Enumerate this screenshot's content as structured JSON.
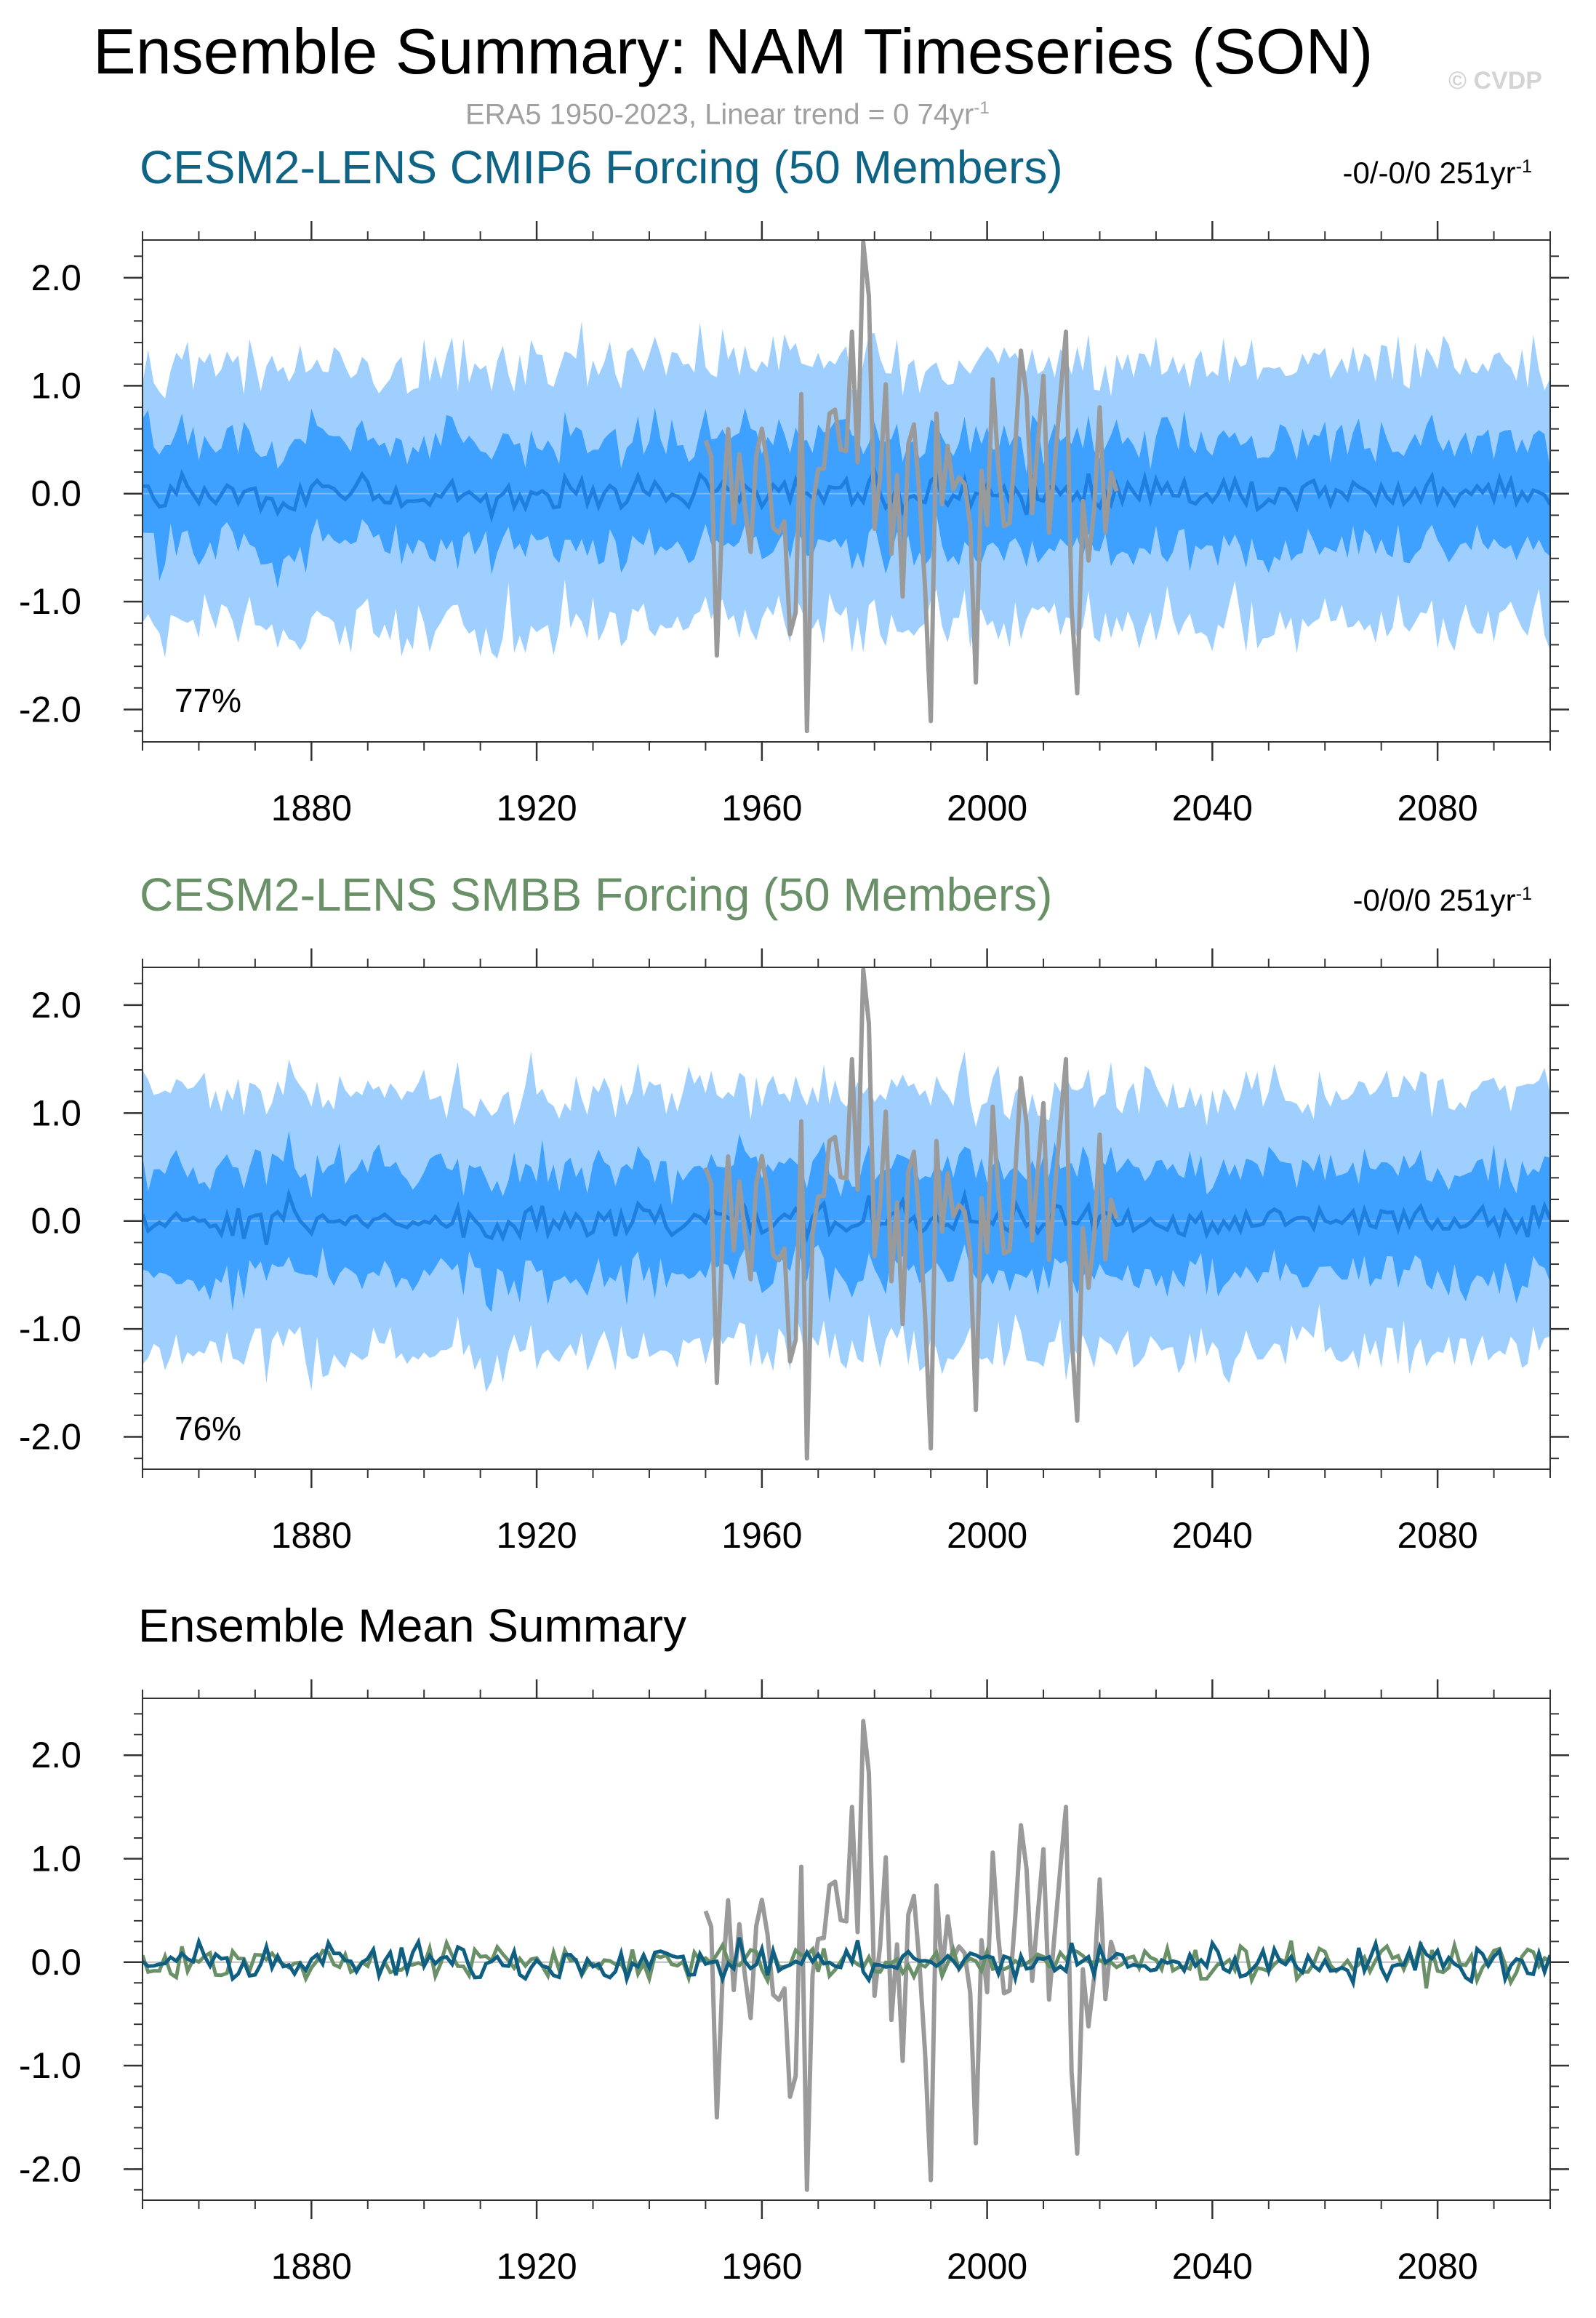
{
  "title": "Ensemble Summary: NAM Timeseries (SON)",
  "subtitle": "ERA5 1950-2023, Linear trend = 0 74yr",
  "subtitle_sup": "-1",
  "copyright": "© CVDP",
  "colors": {
    "cmip6_title": "#0f6486",
    "smbb_title": "#6a9068",
    "band_outer": "#9fcfff",
    "band_inner": "#3ea0ff",
    "mean_line": "#1f7fe0",
    "obs_line": "#9a9a9a",
    "cmip6_mean": "#0f5f82",
    "smbb_mean": "#6a9068"
  },
  "panels": {
    "cmip6": {
      "title": "CESM2-LENS CMIP6 Forcing (50 Members)",
      "trend": "-0/-0/0 251yr",
      "trend_sup": "-1",
      "pct": "77%"
    },
    "smbb": {
      "title": "CESM2-LENS SMBB Forcing (50 Members)",
      "trend": "-0/0/0 251yr",
      "trend_sup": "-1",
      "pct": "76%"
    },
    "mean": {
      "title": "Ensemble Mean Summary"
    }
  },
  "chart_data": [
    {
      "type": "area",
      "name": "cmip6",
      "title": "CESM2-LENS CMIP6 Forcing (50 Members)",
      "xlim": [
        1850,
        2100
      ],
      "ylim": [
        -2.3,
        2.35
      ],
      "xticks": [
        1880,
        1920,
        1960,
        2000,
        2040,
        2080
      ],
      "xtick_labels": [
        "1880",
        "1920",
        "1960",
        "2000",
        "2040",
        "2080"
      ],
      "yticks": [
        2.0,
        1.0,
        0.0,
        -1.0,
        -2.0
      ],
      "ytick_labels": [
        "2.0",
        "1.0",
        "0.0",
        "-1.0",
        "-2.0"
      ],
      "series": [
        {
          "name": "ensemble 10-90% range",
          "x_range": [
            1850,
            2100
          ],
          "lower_approx": -1.2,
          "upper_approx": 1.2
        },
        {
          "name": "ensemble 25-75% range",
          "x_range": [
            1850,
            2100
          ],
          "lower_approx": -0.55,
          "upper_approx": 0.55
        },
        {
          "name": "ensemble mean",
          "x_range": [
            1850,
            2100
          ],
          "value_approx": 0.0
        },
        {
          "name": "ERA5",
          "x": [
            1950,
            2023
          ]
        }
      ]
    },
    {
      "type": "area",
      "name": "smbb",
      "title": "CESM2-LENS SMBB Forcing (50 Members)",
      "xlim": [
        1850,
        2100
      ],
      "ylim": [
        -2.3,
        2.35
      ],
      "xticks": [
        1880,
        1920,
        1960,
        2000,
        2040,
        2080
      ],
      "xtick_labels": [
        "1880",
        "1920",
        "1960",
        "2000",
        "2040",
        "2080"
      ],
      "yticks": [
        2.0,
        1.0,
        0.0,
        -1.0,
        -2.0
      ],
      "ytick_labels": [
        "2.0",
        "1.0",
        "0.0",
        "-1.0",
        "-2.0"
      ],
      "series": [
        {
          "name": "ensemble 10-90% range",
          "x_range": [
            1850,
            2100
          ],
          "lower_approx": -1.2,
          "upper_approx": 1.2
        },
        {
          "name": "ensemble 25-75% range",
          "x_range": [
            1850,
            2100
          ],
          "lower_approx": -0.55,
          "upper_approx": 0.55
        },
        {
          "name": "ensemble mean",
          "x_range": [
            1850,
            2100
          ],
          "value_approx": 0.0
        },
        {
          "name": "ERA5",
          "x": [
            1950,
            2023
          ]
        }
      ]
    },
    {
      "type": "line",
      "name": "mean",
      "title": "Ensemble Mean Summary",
      "xlim": [
        1850,
        2100
      ],
      "ylim": [
        -2.3,
        2.55
      ],
      "xticks": [
        1880,
        1920,
        1960,
        2000,
        2040,
        2080
      ],
      "xtick_labels": [
        "1880",
        "1920",
        "1960",
        "2000",
        "2040",
        "2080"
      ],
      "yticks": [
        2.0,
        1.0,
        0.0,
        -1.0,
        -2.0
      ],
      "ytick_labels": [
        "2.0",
        "1.0",
        "0.0",
        "-1.0",
        "-2.0"
      ],
      "series": [
        {
          "name": "CESM2-LENS CMIP6 Forcing ensemble mean",
          "x_range": [
            1850,
            2100
          ]
        },
        {
          "name": "CESM2-LENS SMBB Forcing ensemble mean",
          "x_range": [
            1850,
            2100
          ]
        },
        {
          "name": "ERA5",
          "x": [
            1950,
            2023
          ]
        }
      ]
    }
  ]
}
